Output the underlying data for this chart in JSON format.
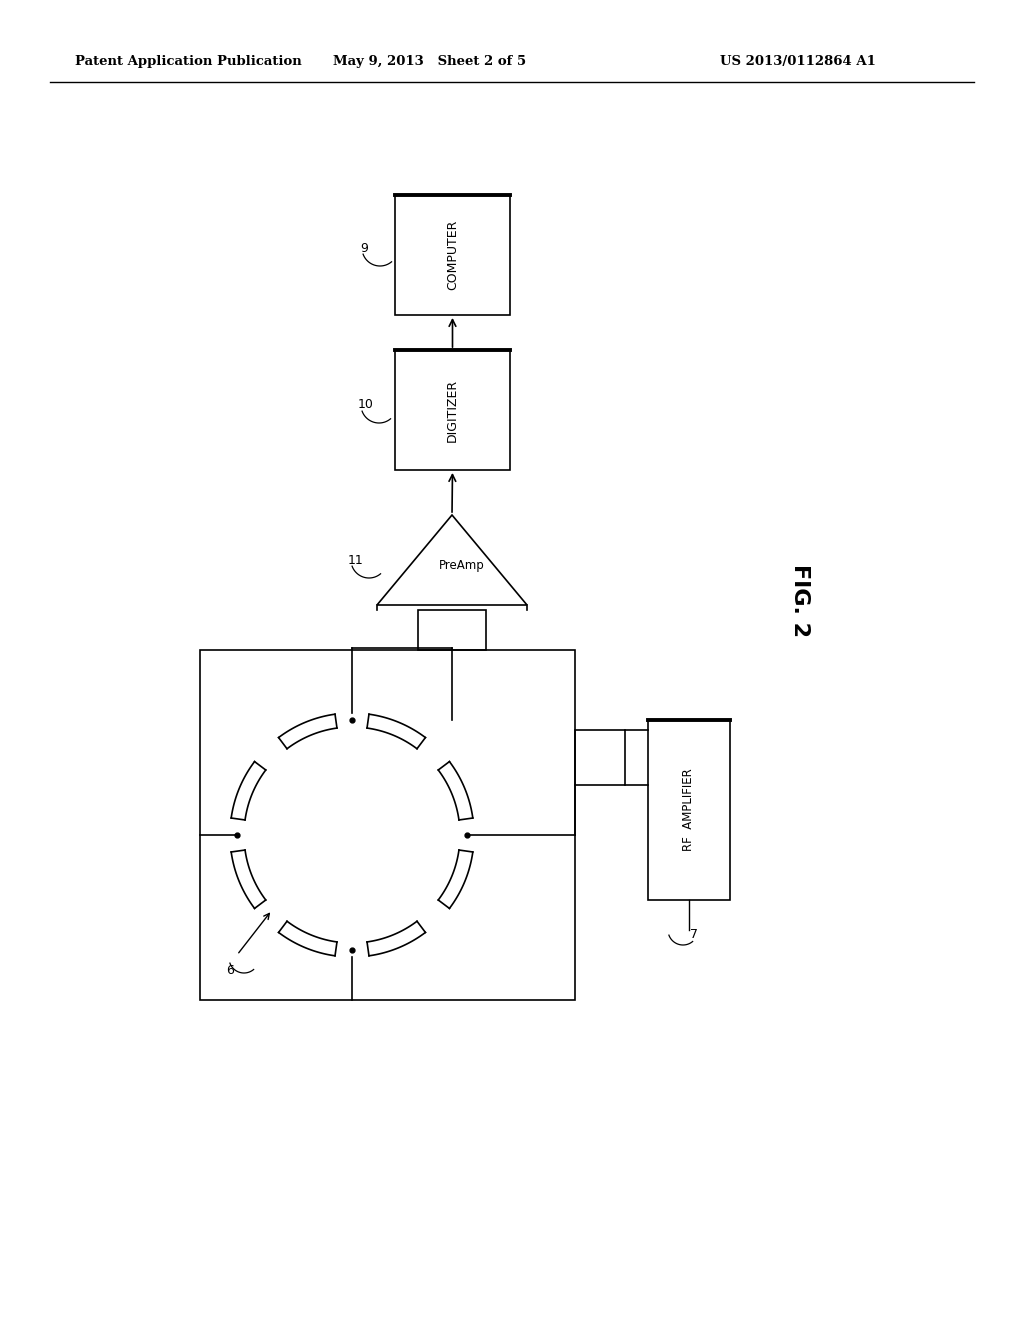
{
  "bg_color": "#ffffff",
  "header_left": "Patent Application Publication",
  "header_mid": "May 9, 2013   Sheet 2 of 5",
  "header_right": "US 2013/0112864 A1",
  "fig_label": "FIG. 2",
  "computer_label": "COMPUTER",
  "digitizer_label": "DIGITIZER",
  "preamp_label": "PreAmp",
  "rf_amp_label": "RF  AMPLIFIER",
  "label_9": "9",
  "label_10": "10",
  "label_11": "11",
  "label_6": "6",
  "label_7": "7"
}
